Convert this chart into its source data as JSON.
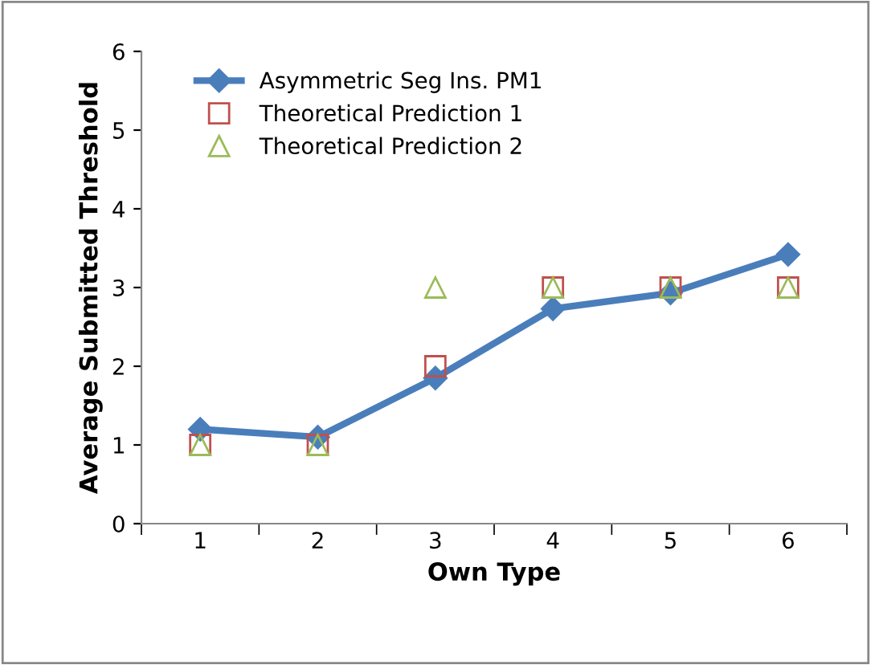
{
  "chart_data": {
    "type": "line",
    "xlabel": "Own Type",
    "ylabel": "Average Submitted Threshold",
    "categories": [
      "1",
      "2",
      "3",
      "4",
      "5",
      "6"
    ],
    "series": [
      {
        "name": "Asymmetric Seg Ins. PM1",
        "color": "#4a7ebb",
        "values": [
          1.2,
          1.1,
          1.85,
          2.73,
          2.93,
          3.42
        ],
        "marker": "diamond",
        "line_style": "solid"
      },
      {
        "name": "Theoretical Prediction 1",
        "color": "#c0504d",
        "values": [
          1,
          1,
          2,
          3,
          3,
          3
        ],
        "type": "scatter",
        "marker": "square"
      },
      {
        "name": "Theoretical Prediction 2",
        "color": "#9bbb59",
        "values": [
          1,
          1,
          3,
          3,
          3,
          3
        ],
        "type": "scatter",
        "marker": "triangle"
      }
    ],
    "ylim": [
      0,
      6
    ],
    "yticks": [
      0,
      1,
      2,
      3,
      4,
      5,
      6
    ],
    "grid": false,
    "legend": "top left"
  }
}
